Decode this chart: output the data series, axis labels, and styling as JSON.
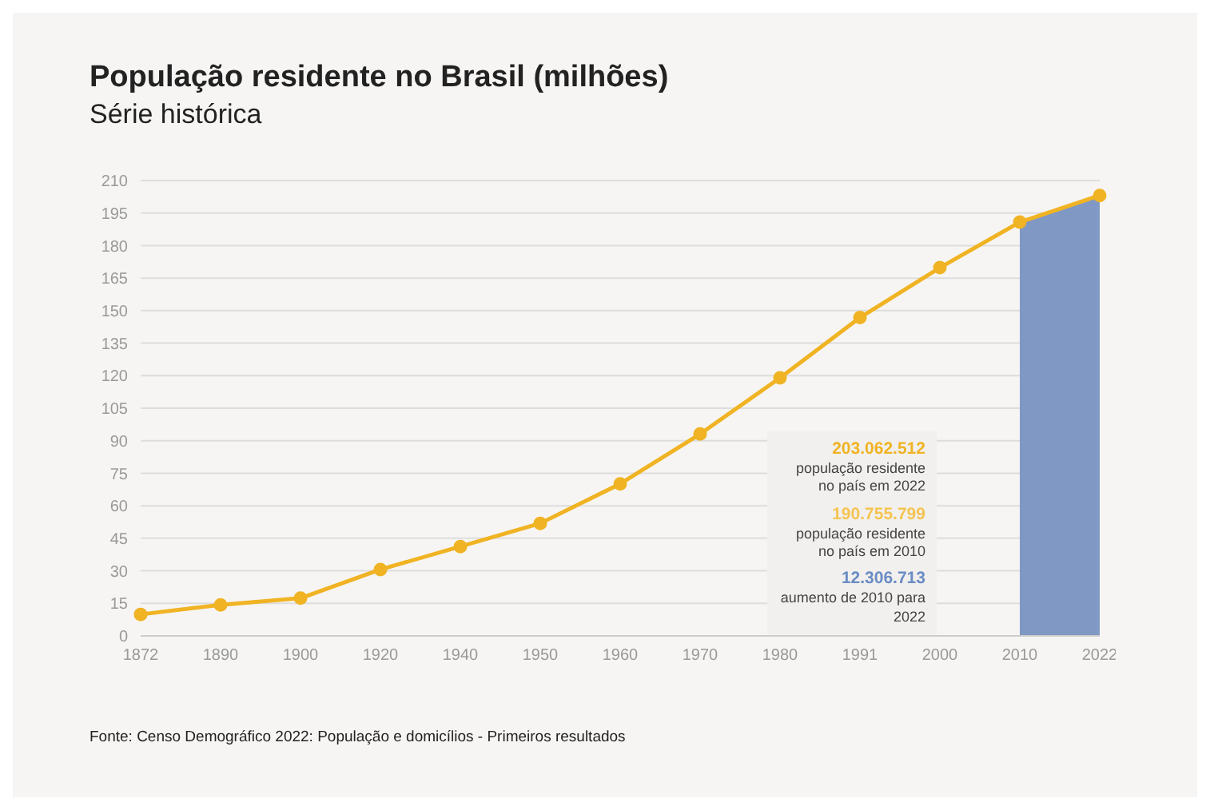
{
  "chart_data": {
    "type": "line",
    "title": "População residente no Brasil (milhões)",
    "subtitle": "Série histórica",
    "categories": [
      "1872",
      "1890",
      "1900",
      "1920",
      "1940",
      "1950",
      "1960",
      "1970",
      "1980",
      "1991",
      "2000",
      "2010",
      "2022"
    ],
    "series": [
      {
        "type": "area",
        "color": "#7f98c4",
        "values": [
          null,
          null,
          null,
          null,
          null,
          null,
          null,
          null,
          null,
          null,
          null,
          190.8,
          203.1
        ]
      },
      {
        "color": "#f0b323",
        "values": [
          9.9,
          14.3,
          17.4,
          30.6,
          41.2,
          51.9,
          70.1,
          93.1,
          119.0,
          146.8,
          169.8,
          190.8,
          203.1
        ]
      }
    ],
    "ylim": [
      0,
      210
    ],
    "yticks": [
      0,
      15,
      30,
      45,
      60,
      75,
      90,
      105,
      120,
      135,
      150,
      165,
      180,
      195,
      210
    ],
    "grid": "y",
    "marker": "circle",
    "annotations": [
      "203.062.512",
      "população residente no país em 2022",
      "190.755.799",
      "população residente no país em 2010",
      "12.306.713",
      "aumento de 2010 para 2022",
      "Fonte: Censo Demográfico 2022: População e domicílios - Primeiros resultados"
    ]
  }
}
